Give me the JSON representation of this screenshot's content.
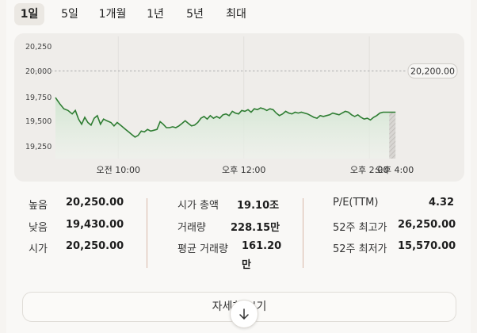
{
  "tabs": [
    "1일",
    "5일",
    "1개월",
    "1년",
    "5년",
    "최대"
  ],
  "active_tab": "1일",
  "colors": {
    "line": "#2e7d32",
    "fill_top": "#cfe5cf",
    "previous_close_line": "#bbbbbb"
  },
  "chart_data": {
    "type": "area",
    "y_ticks": [
      "20,250",
      "20,000",
      "19,750",
      "19,500",
      "19,250"
    ],
    "x_ticks": [
      "오전 10:00",
      "오후 12:00",
      "오후 2:00",
      "오후 4:00"
    ],
    "ylim": [
      19180,
      20380
    ],
    "previous_close": 20200,
    "previous_close_label": "20,200.00",
    "x_unit": "minutes since 9:00",
    "session_end": 390,
    "series": [
      {
        "x": 0,
        "y": 19890
      },
      {
        "x": 4,
        "y": 19820
      },
      {
        "x": 8,
        "y": 19760
      },
      {
        "x": 12,
        "y": 19740
      },
      {
        "x": 16,
        "y": 19700
      },
      {
        "x": 19,
        "y": 19740
      },
      {
        "x": 22,
        "y": 19640
      },
      {
        "x": 25,
        "y": 19580
      },
      {
        "x": 28,
        "y": 19660
      },
      {
        "x": 31,
        "y": 19600
      },
      {
        "x": 34,
        "y": 19570
      },
      {
        "x": 37,
        "y": 19650
      },
      {
        "x": 40,
        "y": 19680
      },
      {
        "x": 43,
        "y": 19580
      },
      {
        "x": 46,
        "y": 19640
      },
      {
        "x": 49,
        "y": 19620
      },
      {
        "x": 53,
        "y": 19600
      },
      {
        "x": 56,
        "y": 19560
      },
      {
        "x": 59,
        "y": 19600
      },
      {
        "x": 63,
        "y": 19560
      },
      {
        "x": 67,
        "y": 19520
      },
      {
        "x": 70,
        "y": 19490
      },
      {
        "x": 73,
        "y": 19460
      },
      {
        "x": 76,
        "y": 19430
      },
      {
        "x": 79,
        "y": 19450
      },
      {
        "x": 82,
        "y": 19500
      },
      {
        "x": 85,
        "y": 19490
      },
      {
        "x": 88,
        "y": 19520
      },
      {
        "x": 91,
        "y": 19500
      },
      {
        "x": 94,
        "y": 19510
      },
      {
        "x": 97,
        "y": 19520
      },
      {
        "x": 100,
        "y": 19610
      },
      {
        "x": 103,
        "y": 19580
      },
      {
        "x": 106,
        "y": 19540
      },
      {
        "x": 109,
        "y": 19540
      },
      {
        "x": 112,
        "y": 19550
      },
      {
        "x": 115,
        "y": 19540
      },
      {
        "x": 118,
        "y": 19560
      },
      {
        "x": 121,
        "y": 19590
      },
      {
        "x": 124,
        "y": 19620
      },
      {
        "x": 127,
        "y": 19590
      },
      {
        "x": 130,
        "y": 19560
      },
      {
        "x": 133,
        "y": 19570
      },
      {
        "x": 136,
        "y": 19600
      },
      {
        "x": 139,
        "y": 19650
      },
      {
        "x": 142,
        "y": 19670
      },
      {
        "x": 145,
        "y": 19640
      },
      {
        "x": 148,
        "y": 19680
      },
      {
        "x": 151,
        "y": 19650
      },
      {
        "x": 154,
        "y": 19670
      },
      {
        "x": 157,
        "y": 19650
      },
      {
        "x": 160,
        "y": 19690
      },
      {
        "x": 163,
        "y": 19700
      },
      {
        "x": 166,
        "y": 19680
      },
      {
        "x": 169,
        "y": 19730
      },
      {
        "x": 172,
        "y": 19710
      },
      {
        "x": 175,
        "y": 19700
      },
      {
        "x": 178,
        "y": 19740
      },
      {
        "x": 181,
        "y": 19730
      },
      {
        "x": 184,
        "y": 19750
      },
      {
        "x": 187,
        "y": 19720
      },
      {
        "x": 190,
        "y": 19760
      },
      {
        "x": 193,
        "y": 19750
      },
      {
        "x": 196,
        "y": 19770
      },
      {
        "x": 199,
        "y": 19760
      },
      {
        "x": 202,
        "y": 19740
      },
      {
        "x": 205,
        "y": 19760
      },
      {
        "x": 208,
        "y": 19750
      },
      {
        "x": 211,
        "y": 19710
      },
      {
        "x": 214,
        "y": 19680
      },
      {
        "x": 217,
        "y": 19700
      },
      {
        "x": 220,
        "y": 19730
      },
      {
        "x": 223,
        "y": 19710
      },
      {
        "x": 226,
        "y": 19700
      },
      {
        "x": 229,
        "y": 19720
      },
      {
        "x": 232,
        "y": 19710
      },
      {
        "x": 235,
        "y": 19720
      },
      {
        "x": 238,
        "y": 19710
      },
      {
        "x": 241,
        "y": 19700
      },
      {
        "x": 244,
        "y": 19680
      },
      {
        "x": 247,
        "y": 19660
      },
      {
        "x": 250,
        "y": 19650
      },
      {
        "x": 253,
        "y": 19680
      },
      {
        "x": 256,
        "y": 19670
      },
      {
        "x": 259,
        "y": 19680
      },
      {
        "x": 262,
        "y": 19690
      },
      {
        "x": 265,
        "y": 19710
      },
      {
        "x": 268,
        "y": 19700
      },
      {
        "x": 271,
        "y": 19690
      },
      {
        "x": 274,
        "y": 19710
      },
      {
        "x": 277,
        "y": 19730
      },
      {
        "x": 280,
        "y": 19720
      },
      {
        "x": 283,
        "y": 19690
      },
      {
        "x": 286,
        "y": 19670
      },
      {
        "x": 289,
        "y": 19690
      },
      {
        "x": 292,
        "y": 19660
      },
      {
        "x": 295,
        "y": 19640
      },
      {
        "x": 298,
        "y": 19650
      },
      {
        "x": 301,
        "y": 19630
      },
      {
        "x": 304,
        "y": 19660
      },
      {
        "x": 307,
        "y": 19680
      },
      {
        "x": 310,
        "y": 19710
      },
      {
        "x": 313,
        "y": 19720
      },
      {
        "x": 316,
        "y": 19720
      },
      {
        "x": 319,
        "y": 19720
      },
      {
        "x": 322,
        "y": 19720
      },
      {
        "x": 325,
        "y": 19720
      }
    ]
  },
  "stats": {
    "col1": [
      {
        "label": "높음",
        "value": "20,250.00"
      },
      {
        "label": "낮음",
        "value": "19,430.00"
      },
      {
        "label": "시가",
        "value": "20,250.00"
      }
    ],
    "col2": [
      {
        "label": "시가 총액",
        "value": "19.10조"
      },
      {
        "label": "거래량",
        "value": "228.15만"
      },
      {
        "label": "평균 거래량",
        "value": "161.20",
        "value_line2": "만"
      }
    ],
    "col3": [
      {
        "label": "P/E(TTM)",
        "value": "4.32"
      },
      {
        "label": "52주 최고가",
        "value": "26,250.00"
      },
      {
        "label": "52주 최저가",
        "value": "15,570.00"
      }
    ]
  },
  "details_button": "자세히 보기"
}
